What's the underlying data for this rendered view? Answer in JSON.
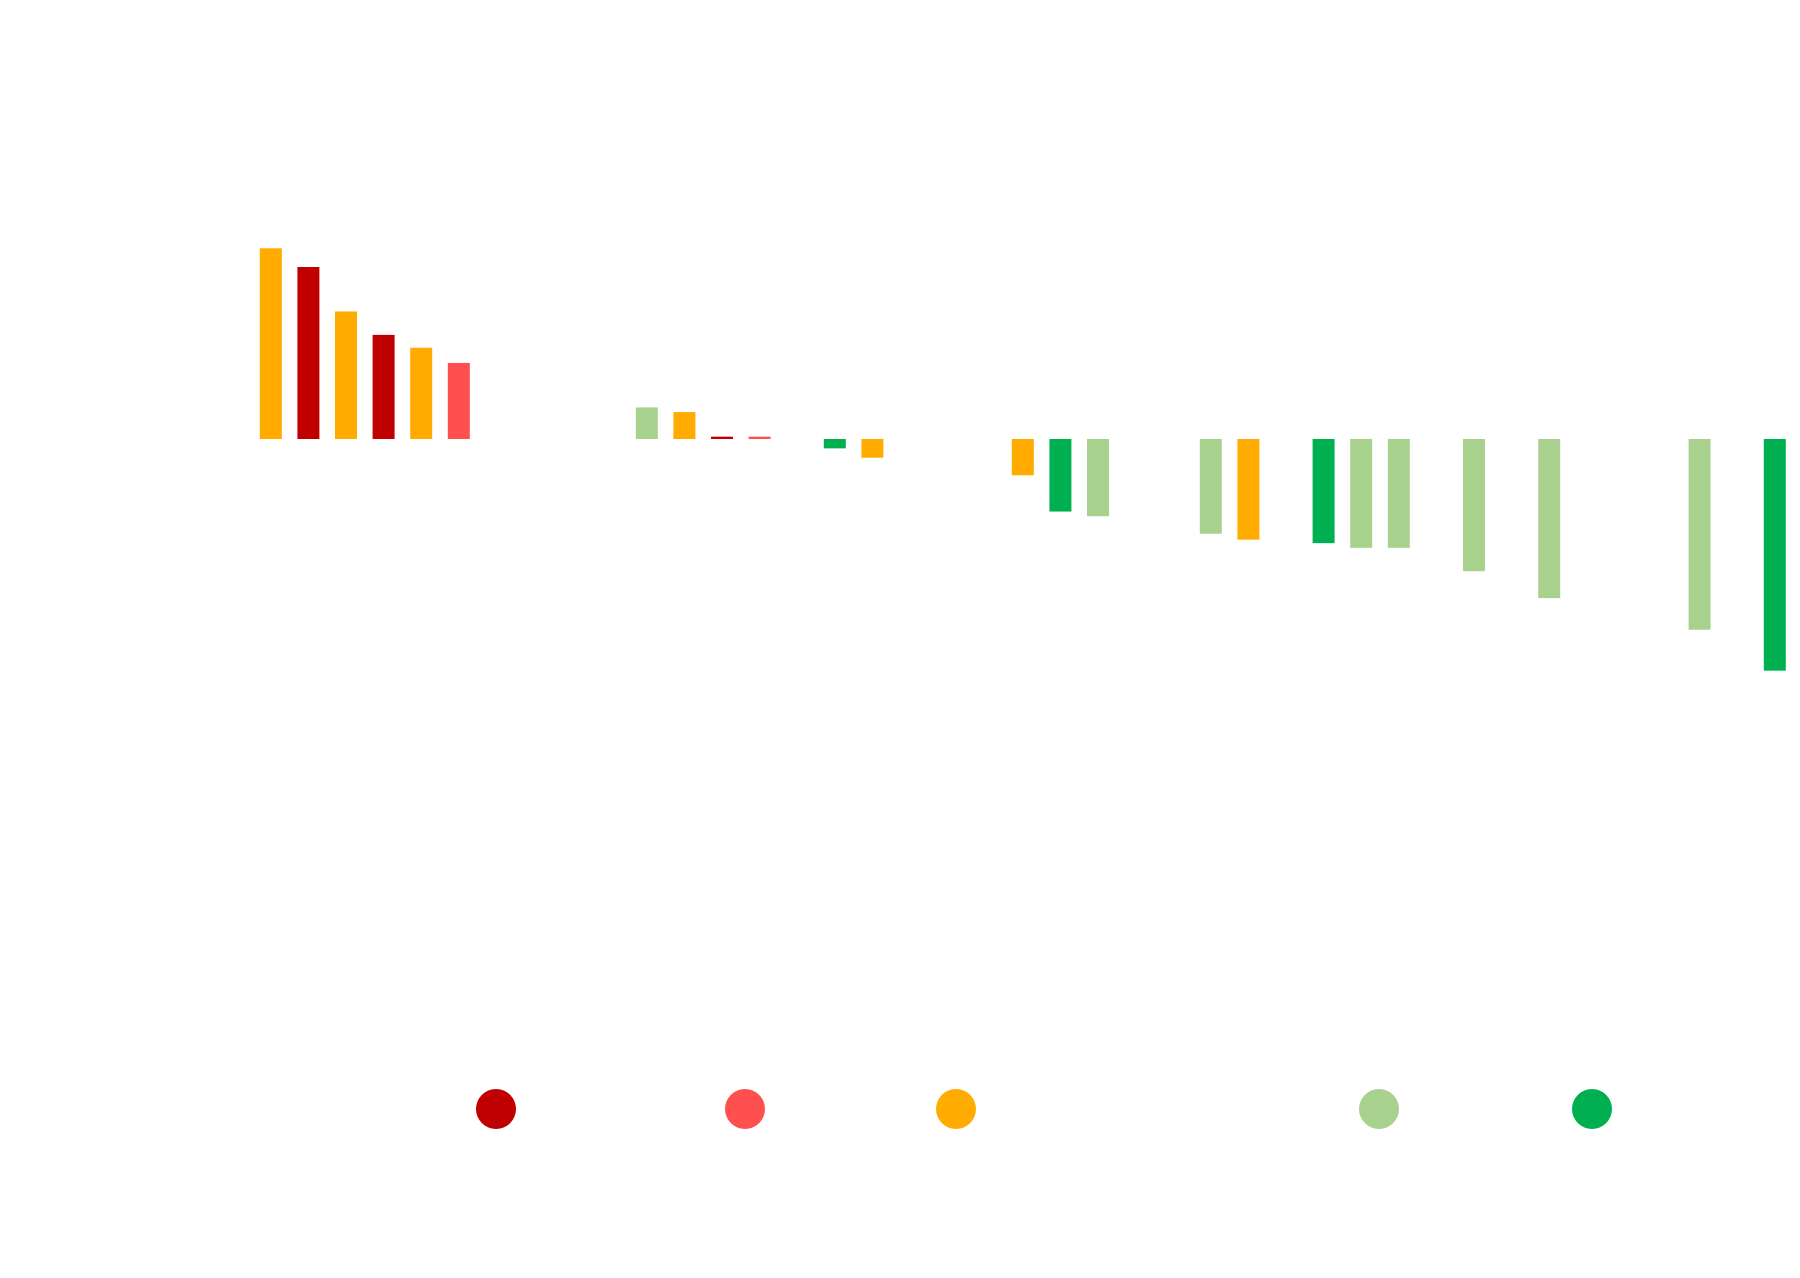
{
  "chart_data": {
    "type": "bar",
    "categories": [
      null,
      null,
      null,
      null,
      null,
      null,
      null,
      null,
      null,
      null,
      null,
      null,
      null,
      null,
      null,
      null,
      null,
      null,
      null,
      null,
      null,
      null,
      null,
      null,
      null,
      null,
      null,
      null,
      null,
      null,
      null,
      null,
      null,
      null,
      null,
      null,
      null,
      null,
      null,
      null,
      null
    ],
    "values": [
      163,
      147,
      109,
      89,
      78,
      65,
      null,
      null,
      null,
      null,
      27,
      23,
      2,
      2,
      null,
      -8,
      -16,
      null,
      null,
      null,
      -31,
      -62,
      -66,
      null,
      null,
      -81,
      -86,
      null,
      -89,
      -93,
      -93,
      null,
      -113,
      null,
      -136,
      null,
      null,
      null,
      -163,
      null,
      -198
    ],
    "colors": [
      "#ffab00",
      "#c00000",
      "#ffab00",
      "#c00000",
      "#ffab00",
      "#ff5050",
      null,
      null,
      null,
      null,
      "#a9d18e",
      "#ffab00",
      "#c00000",
      "#ff5050",
      null,
      "#00b050",
      "#ffab00",
      null,
      null,
      null,
      "#ffab00",
      "#00b050",
      "#a9d18e",
      null,
      null,
      "#a9d18e",
      "#ffab00",
      null,
      "#00b050",
      "#a9d18e",
      "#a9d18e",
      null,
      "#a9d18e",
      null,
      "#a9d18e",
      null,
      null,
      null,
      "#a9d18e",
      null,
      "#00b050"
    ],
    "ylim": [
      -300,
      300
    ],
    "legend_colors": [
      "#c00000",
      "#ff5050",
      "#ffab00",
      "#a9d18e",
      "#00b050"
    ]
  }
}
